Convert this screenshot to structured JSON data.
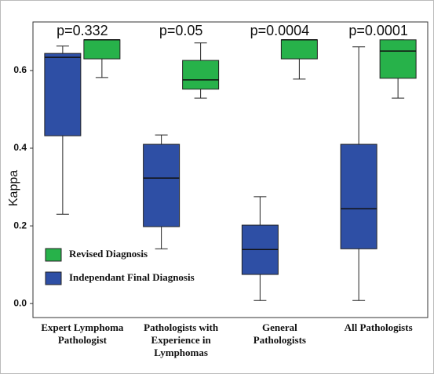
{
  "chart_data": {
    "type": "box",
    "ylabel": "Kappa",
    "categories": [
      [
        "Expert Lymphoma",
        "Pathologist"
      ],
      [
        "Pathologists with",
        "Experience in",
        "Lymphomas"
      ],
      [
        "General",
        "Pathologists"
      ],
      [
        "All Pathologists"
      ]
    ],
    "annotations": [
      "p=0.332",
      "p=0.05",
      "p=0.0004",
      "p=0.0001"
    ],
    "series": [
      {
        "name": "Independant Final Diagnosis",
        "color": "#2e4fa5",
        "min": [
          0.23,
          0.141,
          0.008,
          0.008
        ],
        "q1": [
          0.432,
          0.198,
          0.075,
          0.141
        ],
        "median": [
          0.634,
          0.323,
          0.139,
          0.244
        ],
        "q3": [
          0.644,
          0.41,
          0.202,
          0.41
        ],
        "max": [
          0.663,
          0.434,
          0.275,
          0.661
        ]
      },
      {
        "name": "Revised Diagnosis",
        "color": "#27b24a",
        "min": [
          0.582,
          0.529,
          0.578,
          0.529
        ],
        "q1": [
          0.63,
          0.552,
          0.63,
          0.58
        ],
        "median": [
          0.679,
          0.576,
          0.679,
          0.65
        ],
        "q3": [
          0.679,
          0.626,
          0.679,
          0.679
        ],
        "max": [
          0.679,
          0.671,
          0.679,
          0.679
        ]
      }
    ],
    "ylim": [
      -0.036,
      0.725
    ],
    "yticks": [
      {
        "value": 0,
        "label": "0.0"
      },
      0.2,
      0.4,
      0.6
    ],
    "legend": "lower left"
  }
}
